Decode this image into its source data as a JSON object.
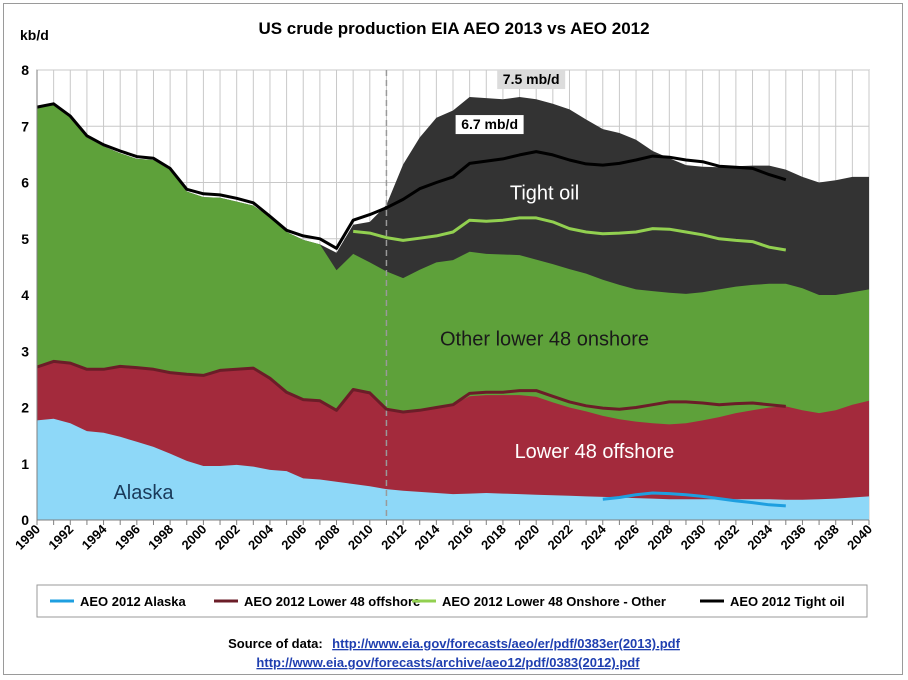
{
  "chart_data": {
    "type": "area",
    "title": "US crude production EIA AEO 2013 vs AEO 2012",
    "unit_label": "kb/d",
    "ylim": [
      0,
      8
    ],
    "yticks": [
      "0",
      "1",
      "2",
      "3",
      "4",
      "5",
      "6",
      "7",
      "8"
    ],
    "xlim": [
      1990,
      2040
    ],
    "xticks": [
      "1990",
      "1992",
      "1994",
      "1996",
      "1998",
      "2000",
      "2002",
      "2004",
      "2006",
      "2008",
      "2010",
      "2012",
      "2014",
      "2016",
      "2018",
      "2020",
      "2022",
      "2024",
      "2026",
      "2028",
      "2030",
      "2032",
      "2034",
      "2036",
      "2038",
      "2040"
    ],
    "grid": true,
    "projection_divider_year": 2011,
    "years": [
      1990,
      1991,
      1992,
      1993,
      1994,
      1995,
      1996,
      1997,
      1998,
      1999,
      2000,
      2001,
      2002,
      2003,
      2004,
      2005,
      2006,
      2007,
      2008,
      2009,
      2010,
      2011,
      2012,
      2013,
      2014,
      2015,
      2016,
      2017,
      2018,
      2019,
      2020,
      2021,
      2022,
      2023,
      2024,
      2025,
      2026,
      2027,
      2028,
      2029,
      2030,
      2031,
      2032,
      2033,
      2034,
      2035,
      2036,
      2037,
      2038,
      2039,
      2040
    ],
    "stacked_series": [
      {
        "name": "Alaska",
        "color": "#8ed8f8",
        "cumulative": [
          1.77,
          1.8,
          1.72,
          1.58,
          1.55,
          1.48,
          1.39,
          1.3,
          1.18,
          1.05,
          0.96,
          0.96,
          0.98,
          0.95,
          0.89,
          0.87,
          0.74,
          0.72,
          0.68,
          0.64,
          0.6,
          0.55,
          0.52,
          0.5,
          0.48,
          0.46,
          0.47,
          0.48,
          0.47,
          0.46,
          0.45,
          0.44,
          0.43,
          0.42,
          0.41,
          0.4,
          0.39,
          0.38,
          0.37,
          0.37,
          0.37,
          0.37,
          0.37,
          0.37,
          0.37,
          0.36,
          0.36,
          0.37,
          0.38,
          0.4,
          0.42
        ]
      },
      {
        "name": "Lower 48 offshore",
        "color": "#a32a3c",
        "cumulative": [
          2.72,
          2.82,
          2.79,
          2.68,
          2.68,
          2.73,
          2.71,
          2.68,
          2.62,
          2.59,
          2.57,
          2.66,
          2.68,
          2.7,
          2.52,
          2.27,
          2.14,
          2.12,
          1.95,
          2.32,
          2.26,
          1.97,
          1.92,
          1.95,
          2.0,
          2.05,
          2.2,
          2.22,
          2.22,
          2.22,
          2.19,
          2.09,
          2.0,
          1.93,
          1.85,
          1.79,
          1.75,
          1.72,
          1.7,
          1.72,
          1.77,
          1.83,
          1.9,
          1.95,
          2.0,
          2.02,
          1.95,
          1.9,
          1.95,
          2.05,
          2.12
        ]
      },
      {
        "name": "Other lower 48 onshore",
        "color": "#5ea13a",
        "cumulative": [
          7.34,
          7.37,
          7.15,
          6.8,
          6.64,
          6.52,
          6.42,
          6.4,
          6.22,
          5.84,
          5.74,
          5.73,
          5.66,
          5.59,
          5.38,
          5.12,
          4.98,
          4.9,
          4.44,
          4.73,
          4.58,
          4.42,
          4.3,
          4.45,
          4.58,
          4.62,
          4.77,
          4.73,
          4.72,
          4.71,
          4.63,
          4.55,
          4.46,
          4.38,
          4.27,
          4.18,
          4.1,
          4.07,
          4.04,
          4.02,
          4.05,
          4.1,
          4.15,
          4.18,
          4.2,
          4.2,
          4.12,
          4.0,
          4.0,
          4.05,
          4.1
        ]
      },
      {
        "name": "Tight oil",
        "color": "#333333",
        "cumulative": [
          7.34,
          7.37,
          7.15,
          6.8,
          6.64,
          6.52,
          6.42,
          6.4,
          6.22,
          5.84,
          5.74,
          5.73,
          5.66,
          5.59,
          5.38,
          5.12,
          4.98,
          4.9,
          4.75,
          5.25,
          5.3,
          5.6,
          6.32,
          6.8,
          7.15,
          7.28,
          7.52,
          7.5,
          7.48,
          7.52,
          7.48,
          7.4,
          7.3,
          7.12,
          6.95,
          6.88,
          6.76,
          6.56,
          6.43,
          6.31,
          6.28,
          6.27,
          6.29,
          6.3,
          6.3,
          6.23,
          6.1,
          6.0,
          6.04,
          6.1,
          6.1
        ]
      }
    ],
    "line_series": [
      {
        "name": "AEO 2012 Alaska",
        "color": "#1e9fe0",
        "x": [
          2024,
          2025,
          2026,
          2027,
          2028,
          2029,
          2030,
          2031,
          2032,
          2033,
          2034,
          2035
        ],
        "y": [
          0.37,
          0.4,
          0.45,
          0.48,
          0.47,
          0.45,
          0.42,
          0.38,
          0.34,
          0.31,
          0.27,
          0.25
        ]
      },
      {
        "name": "AEO 2012 Lower 48 offshore",
        "color": "#6b1d28",
        "x": [
          1990,
          1991,
          1992,
          1993,
          1994,
          1995,
          1996,
          1997,
          1998,
          1999,
          2000,
          2001,
          2002,
          2003,
          2004,
          2005,
          2006,
          2007,
          2008,
          2009,
          2010,
          2011,
          2012,
          2013,
          2014,
          2015,
          2016,
          2017,
          2018,
          2019,
          2020,
          2021,
          2022,
          2023,
          2024,
          2025,
          2026,
          2027,
          2028,
          2029,
          2030,
          2031,
          2032,
          2033,
          2034,
          2035
        ],
        "y": [
          2.72,
          2.82,
          2.79,
          2.68,
          2.68,
          2.73,
          2.71,
          2.68,
          2.62,
          2.59,
          2.57,
          2.66,
          2.68,
          2.7,
          2.52,
          2.27,
          2.14,
          2.12,
          1.95,
          2.32,
          2.26,
          1.97,
          1.92,
          1.95,
          2.0,
          2.05,
          2.25,
          2.27,
          2.27,
          2.3,
          2.3,
          2.2,
          2.1,
          2.03,
          1.99,
          1.97,
          2.0,
          2.05,
          2.1,
          2.1,
          2.08,
          2.05,
          2.07,
          2.08,
          2.05,
          2.02
        ]
      },
      {
        "name": "AEO 2012 Lower 48 Onshore - Other",
        "color": "#92d050",
        "x": [
          2009,
          2010,
          2011,
          2012,
          2013,
          2014,
          2015,
          2016,
          2017,
          2018,
          2019,
          2020,
          2021,
          2022,
          2023,
          2024,
          2025,
          2026,
          2027,
          2028,
          2029,
          2030,
          2031,
          2032,
          2033,
          2034,
          2035
        ],
        "y": [
          5.13,
          5.1,
          5.02,
          4.97,
          5.01,
          5.05,
          5.12,
          5.33,
          5.31,
          5.33,
          5.37,
          5.37,
          5.3,
          5.18,
          5.12,
          5.09,
          5.1,
          5.12,
          5.18,
          5.17,
          5.12,
          5.07,
          5.0,
          4.97,
          4.95,
          4.85,
          4.8
        ]
      },
      {
        "name": "AEO 2012 Tight oil",
        "color": "#000000",
        "x": [
          1990,
          1991,
          1992,
          1993,
          1994,
          1995,
          1996,
          1997,
          1998,
          1999,
          2000,
          2001,
          2002,
          2003,
          2004,
          2005,
          2006,
          2007,
          2008,
          2009,
          2010,
          2011,
          2012,
          2013,
          2014,
          2015,
          2016,
          2017,
          2018,
          2019,
          2020,
          2021,
          2022,
          2023,
          2024,
          2025,
          2026,
          2027,
          2028,
          2029,
          2030,
          2031,
          2032,
          2033,
          2034,
          2035
        ],
        "y": [
          7.34,
          7.4,
          7.18,
          6.83,
          6.67,
          6.56,
          6.46,
          6.43,
          6.25,
          5.88,
          5.8,
          5.78,
          5.72,
          5.64,
          5.4,
          5.15,
          5.05,
          5.0,
          4.83,
          5.33,
          5.43,
          5.55,
          5.7,
          5.89,
          6.0,
          6.1,
          6.34,
          6.38,
          6.42,
          6.49,
          6.55,
          6.49,
          6.4,
          6.33,
          6.31,
          6.34,
          6.4,
          6.47,
          6.45,
          6.4,
          6.37,
          6.29,
          6.27,
          6.25,
          6.14,
          6.05
        ]
      }
    ],
    "area_labels": [
      {
        "text": "Tight oil",
        "x": 2020.5,
        "y": 5.7,
        "color": "#ffffff"
      },
      {
        "text": "Other lower 48 onshore",
        "x": 2020.5,
        "y": 3.1,
        "color": "#1a1a1a"
      },
      {
        "text": "Lower 48 offshore",
        "x": 2023.5,
        "y": 1.1,
        "color": "#ffffff"
      },
      {
        "text": "Alaska",
        "x": 1996.4,
        "y": 0.37,
        "color": "#1a3a5a"
      }
    ],
    "callouts": [
      {
        "text": "7.5 mb/d",
        "x": 2019.7,
        "y": 7.75
      },
      {
        "text": "6.7 mb/d",
        "x": 2017.2,
        "y": 6.95
      }
    ],
    "legend_position": "bottom"
  },
  "source": {
    "label": "Source of data:",
    "link1": "http://www.eia.gov/forecasts/aeo/er/pdf/0383er(2013).pdf",
    "link2": "http://www.eia.gov/forecasts/archive/aeo12/pdf/0383(2012).pdf"
  }
}
